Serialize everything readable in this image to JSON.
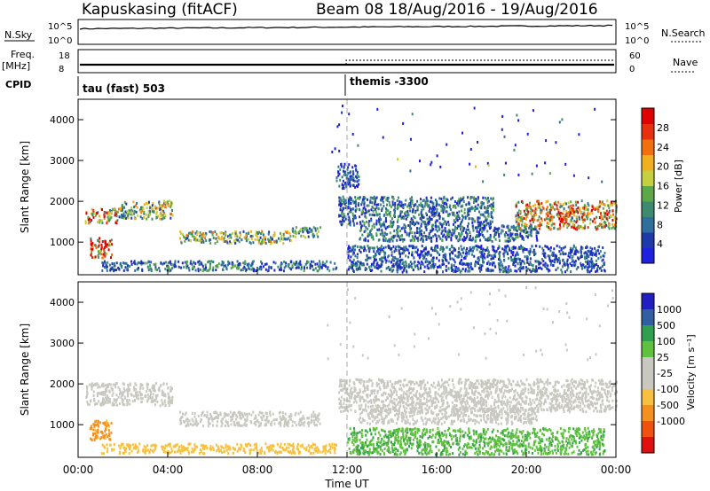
{
  "header": {
    "station": "Kapuskasing (fitACF)",
    "beam_and_dates": "Beam 08  18/Aug/2016 - 19/Aug/2016"
  },
  "sky_panel": {
    "left_label": "N.Sky",
    "right_label": "N.Search",
    "ticks_left": [
      "10^5",
      "10^0"
    ],
    "ticks_right": [
      "10^5",
      "10^0"
    ]
  },
  "freq_panel": {
    "left_label_line1": "Freq.",
    "left_label_line2": "[MHz]",
    "right_label": "Nave",
    "ticks_left": [
      "18",
      "8"
    ],
    "ticks_right": [
      "60",
      "0"
    ]
  },
  "cpid": {
    "label": "CPID",
    "first": "tau (fast) 503",
    "second": "themis -3300",
    "switch_hour": 12
  },
  "colors": {
    "power_scale": [
      "#2020e0",
      "#1e3aa8",
      "#2f6f9e",
      "#3d8a70",
      "#5aa84a",
      "#c4d040",
      "#f0b020",
      "#f07010",
      "#e83010",
      "#e00000"
    ],
    "velocity_scale": [
      "#e01010",
      "#f05010",
      "#f59020",
      "#f8c040",
      "#c8c8c0",
      "#c8c8c0",
      "#60c040",
      "#30a050",
      "#3060a0",
      "#2020c0"
    ]
  },
  "chart_data": [
    {
      "type": "heatmap",
      "name": "power",
      "ylabel": "Slant Range [km]",
      "yticks": [
        "1000",
        "2000",
        "3000",
        "4000"
      ],
      "ylim": [
        200,
        4500
      ],
      "xlim_hours": [
        0,
        24
      ],
      "colorbar_label": "Power [dB]",
      "colorbar_ticks": [
        "4",
        "8",
        "12",
        "16",
        "20",
        "24",
        "28"
      ],
      "colorbar_range": [
        0,
        32
      ],
      "scatter_regions": [
        {
          "t0": 0.3,
          "t1": 1.8,
          "r0": 1450,
          "r1": 1800,
          "v": 20
        },
        {
          "t0": 1.8,
          "t1": 4.2,
          "r0": 1550,
          "r1": 2000,
          "v": 14
        },
        {
          "t0": 0.5,
          "t1": 1.5,
          "r0": 600,
          "r1": 1100,
          "v": 24
        },
        {
          "t0": 4.5,
          "t1": 9.5,
          "r0": 950,
          "r1": 1250,
          "v": 14
        },
        {
          "t0": 9.5,
          "t1": 10.8,
          "r0": 1100,
          "r1": 1350,
          "v": 10
        },
        {
          "t0": 1.0,
          "t1": 11.5,
          "r0": 280,
          "r1": 520,
          "v": 8
        },
        {
          "t0": 11.6,
          "t1": 18.5,
          "r0": 1400,
          "r1": 2100,
          "v": 8
        },
        {
          "t0": 12.5,
          "t1": 20.5,
          "r0": 1000,
          "r1": 1400,
          "v": 8
        },
        {
          "t0": 19.5,
          "t1": 24,
          "r0": 1300,
          "r1": 2000,
          "v": 20
        },
        {
          "t0": 12.0,
          "t1": 23.5,
          "r0": 250,
          "r1": 900,
          "v": 6
        },
        {
          "t0": 11.5,
          "t1": 12.5,
          "r0": 2300,
          "r1": 2900,
          "v": 6
        }
      ]
    },
    {
      "type": "heatmap",
      "name": "velocity",
      "ylabel": "Slant Range [km]",
      "xlabel": "Time UT",
      "xticks": [
        "00:00",
        "04:00",
        "08:00",
        "12:00",
        "16:00",
        "20:00",
        "00:00"
      ],
      "yticks": [
        "1000",
        "2000",
        "3000",
        "4000"
      ],
      "ylim": [
        200,
        4500
      ],
      "xlim_hours": [
        0,
        24
      ],
      "colorbar_label": "Velocity [m s⁻¹]",
      "colorbar_ticks": [
        "1000",
        "500",
        "100",
        "25",
        "-25",
        "-100",
        "-500",
        "-1000"
      ],
      "scatter_regions": [
        {
          "t0": 0.3,
          "t1": 4.2,
          "r0": 1450,
          "r1": 2000,
          "v": 0
        },
        {
          "t0": 0.5,
          "t1": 1.5,
          "r0": 600,
          "r1": 1100,
          "v": -150
        },
        {
          "t0": 4.5,
          "t1": 10.8,
          "r0": 950,
          "r1": 1300,
          "v": 0
        },
        {
          "t0": 1.0,
          "t1": 11.5,
          "r0": 280,
          "r1": 520,
          "v": -50
        },
        {
          "t0": 11.6,
          "t1": 24,
          "r0": 1300,
          "r1": 2100,
          "v": 0
        },
        {
          "t0": 12.5,
          "t1": 20.5,
          "r0": 1000,
          "r1": 1400,
          "v": 0
        },
        {
          "t0": 12.0,
          "t1": 23.5,
          "r0": 250,
          "r1": 900,
          "v": 80
        }
      ]
    }
  ]
}
